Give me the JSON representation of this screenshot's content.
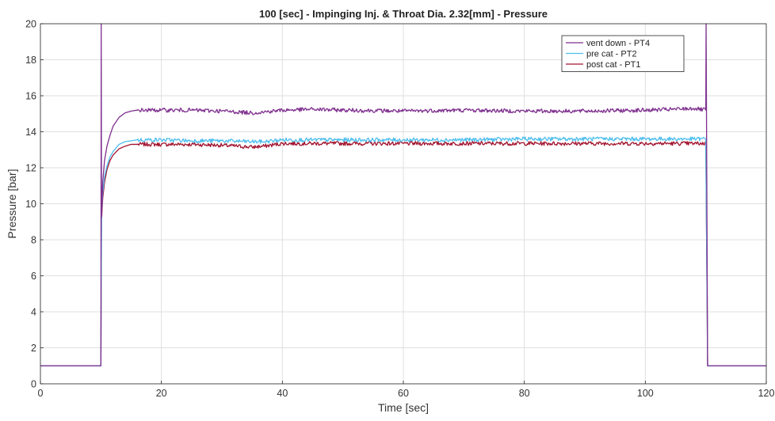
{
  "chart_data": {
    "type": "line",
    "title": "100 [sec] - Impinging Inj. & Throat Dia. 2.32[mm] - Pressure",
    "xlabel": "Time [sec]",
    "ylabel": "Pressure [bar]",
    "xlim": [
      0,
      120
    ],
    "ylim": [
      0,
      20
    ],
    "xticks": [
      "0",
      "20",
      "40",
      "60",
      "80",
      "100",
      "120"
    ],
    "yticks": [
      "0",
      "2",
      "4",
      "6",
      "8",
      "10",
      "12",
      "14",
      "16",
      "18",
      "20"
    ],
    "grid": true,
    "legend": "top-right",
    "series": [
      {
        "name": "vent down - PT4",
        "color": "#7e2f8e",
        "x": [
          0,
          10,
          10.05,
          10.1,
          10.3,
          10.6,
          11,
          11.5,
          12,
          13,
          14,
          15,
          16,
          18,
          20,
          25,
          30,
          35,
          37,
          40,
          45,
          50,
          60,
          70,
          80,
          90,
          100,
          105,
          108,
          110,
          110.05,
          110.3,
          120
        ],
        "y": [
          1,
          1,
          20,
          9.3,
          11.2,
          12.4,
          13.2,
          13.8,
          14.3,
          14.8,
          15.05,
          15.15,
          15.2,
          15.2,
          15.2,
          15.2,
          15.15,
          15.05,
          15.1,
          15.2,
          15.25,
          15.2,
          15.15,
          15.2,
          15.15,
          15.15,
          15.2,
          15.25,
          15.3,
          15.2,
          20,
          1,
          1
        ]
      },
      {
        "name": "pre cat - PT2",
        "color": "#4dbeee",
        "x": [
          0,
          10,
          10.1,
          10.3,
          10.6,
          11,
          11.5,
          12,
          13,
          14,
          15,
          16,
          18,
          20,
          25,
          30,
          35,
          37,
          40,
          45,
          50,
          60,
          70,
          80,
          90,
          100,
          105,
          108,
          110,
          110.3,
          120
        ],
        "y": [
          1,
          1,
          9.4,
          10.6,
          11.5,
          12.1,
          12.6,
          12.9,
          13.3,
          13.45,
          13.5,
          13.55,
          13.55,
          13.55,
          13.5,
          13.5,
          13.45,
          13.45,
          13.55,
          13.55,
          13.55,
          13.55,
          13.55,
          13.6,
          13.6,
          13.6,
          13.6,
          13.6,
          13.6,
          1,
          1
        ]
      },
      {
        "name": "post cat - PT1",
        "color": "#a2142f",
        "x": [
          0,
          10,
          10.1,
          10.3,
          10.6,
          11,
          11.5,
          12,
          13,
          14,
          15,
          16,
          18,
          20,
          25,
          30,
          35,
          37,
          40,
          45,
          50,
          60,
          70,
          80,
          90,
          100,
          105,
          108,
          110,
          110.3,
          120
        ],
        "y": [
          1,
          1,
          9.1,
          10.3,
          11.2,
          11.9,
          12.4,
          12.7,
          13.05,
          13.2,
          13.3,
          13.3,
          13.3,
          13.3,
          13.3,
          13.25,
          13.15,
          13.2,
          13.35,
          13.35,
          13.35,
          13.35,
          13.35,
          13.35,
          13.35,
          13.35,
          13.35,
          13.35,
          13.35,
          1,
          1
        ]
      }
    ]
  }
}
